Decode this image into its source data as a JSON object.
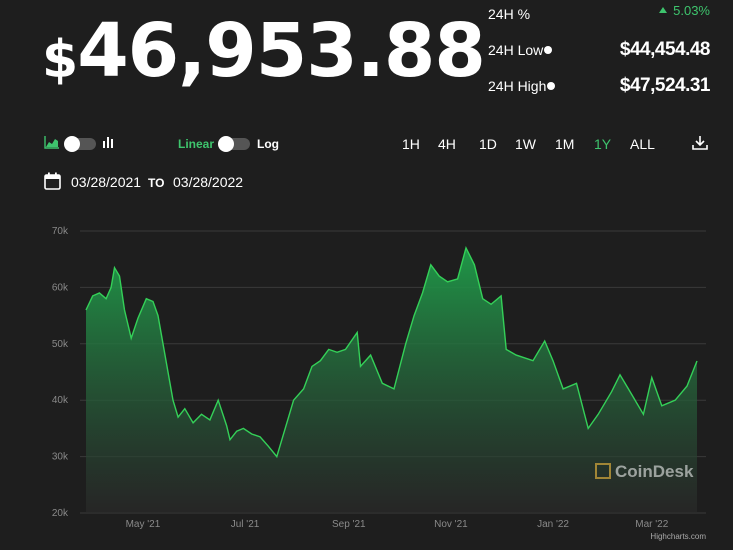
{
  "price": {
    "currency": "$",
    "amount": "46,953.88"
  },
  "stats": {
    "change_label": "24H %",
    "change_value": "5.03%",
    "low_label": "24H Low",
    "low_value": "$44,454.48",
    "high_label": "24H High",
    "high_value": "$47,524.31"
  },
  "controls": {
    "chart_type_icons": [
      "area-chart-icon",
      "bar-chart-icon"
    ],
    "scale_linear": "Linear",
    "scale_log": "Log",
    "ranges": [
      "1H",
      "4H",
      "1D",
      "1W",
      "1M",
      "1Y",
      "ALL"
    ],
    "active_range": "1Y",
    "download_icon": "download-icon"
  },
  "date_range": {
    "from": "03/28/2021",
    "to_label": "TO",
    "to": "03/28/2022",
    "calendar_icon": "calendar-icon"
  },
  "colors": {
    "accent_green": "#3ec46d",
    "background": "#1e1e1e",
    "line": "#34d058"
  },
  "watermark": "CoinDesk",
  "credits": "Highcharts.com",
  "chart_data": {
    "type": "area",
    "title": "",
    "xlabel": "",
    "ylabel": "",
    "ylim": [
      20000,
      70000
    ],
    "yticks": [
      20000,
      30000,
      40000,
      50000,
      60000,
      70000
    ],
    "ytick_labels": [
      "20k",
      "30k",
      "40k",
      "50k",
      "60k",
      "70k"
    ],
    "xticks": [
      "2021-05-01",
      "2021-07-01",
      "2021-09-01",
      "2021-11-01",
      "2022-01-01",
      "2022-03-01"
    ],
    "xtick_labels": [
      "May '21",
      "Jul '21",
      "Sep '21",
      "Nov '21",
      "Jan '22",
      "Mar '22"
    ],
    "xlim": [
      "2021-03-28",
      "2022-03-28"
    ],
    "grid": true,
    "series": [
      {
        "x": [
          "2021-03-28",
          "2021-04-01",
          "2021-04-05",
          "2021-04-09",
          "2021-04-12",
          "2021-04-14",
          "2021-04-17",
          "2021-04-20",
          "2021-04-24",
          "2021-04-28",
          "2021-05-03",
          "2021-05-07",
          "2021-05-10",
          "2021-05-13",
          "2021-05-16",
          "2021-05-19",
          "2021-05-22",
          "2021-05-26",
          "2021-05-31",
          "2021-06-05",
          "2021-06-10",
          "2021-06-15",
          "2021-06-20",
          "2021-06-22",
          "2021-06-26",
          "2021-06-30",
          "2021-07-05",
          "2021-07-10",
          "2021-07-15",
          "2021-07-20",
          "2021-07-25",
          "2021-07-30",
          "2021-08-05",
          "2021-08-10",
          "2021-08-15",
          "2021-08-20",
          "2021-08-25",
          "2021-08-30",
          "2021-09-06",
          "2021-09-08",
          "2021-09-14",
          "2021-09-21",
          "2021-09-28",
          "2021-10-05",
          "2021-10-10",
          "2021-10-15",
          "2021-10-20",
          "2021-10-25",
          "2021-10-30",
          "2021-11-05",
          "2021-11-10",
          "2021-11-15",
          "2021-11-20",
          "2021-11-25",
          "2021-12-01",
          "2021-12-04",
          "2021-12-10",
          "2021-12-20",
          "2021-12-27",
          "2022-01-01",
          "2022-01-07",
          "2022-01-15",
          "2022-01-22",
          "2022-01-28",
          "2022-02-05",
          "2022-02-10",
          "2022-02-15",
          "2022-02-24",
          "2022-03-01",
          "2022-03-07",
          "2022-03-15",
          "2022-03-22",
          "2022-03-28"
        ],
        "values": [
          56000,
          58500,
          59000,
          58000,
          60000,
          63500,
          62000,
          56000,
          51000,
          54500,
          58000,
          57500,
          55000,
          50000,
          45000,
          40000,
          37000,
          38500,
          36000,
          37500,
          36500,
          40000,
          35500,
          33000,
          34500,
          35000,
          34000,
          33500,
          31800,
          30000,
          35000,
          40000,
          42000,
          46000,
          47000,
          49000,
          48500,
          49000,
          52000,
          46000,
          48000,
          43000,
          42000,
          50000,
          55000,
          59000,
          64000,
          62000,
          61000,
          61500,
          67000,
          64000,
          58000,
          57000,
          58500,
          49000,
          48000,
          47000,
          50500,
          47000,
          42000,
          43000,
          35000,
          37500,
          41500,
          44500,
          42000,
          37500,
          44000,
          39000,
          40000,
          42500,
          46953
        ]
      }
    ]
  }
}
